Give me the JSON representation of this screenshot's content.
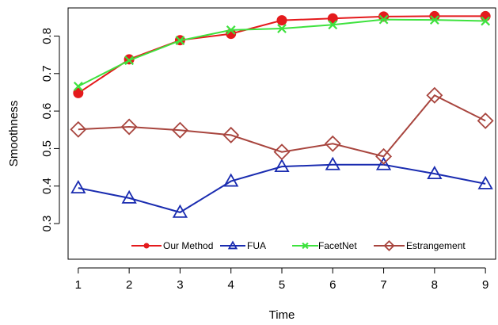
{
  "chart_data": {
    "type": "line",
    "title": "",
    "xlabel": "Time",
    "ylabel": "Smoothness",
    "x": [
      1,
      2,
      3,
      4,
      5,
      6,
      7,
      8,
      9
    ],
    "xlim": [
      0.8,
      9.2
    ],
    "ylim": [
      0.205,
      0.875
    ],
    "y_ticks": [
      0.3,
      0.4,
      0.5,
      0.6,
      0.7,
      0.8
    ],
    "y_tick_labels": [
      "0.3",
      "0.4",
      "0.5",
      "0.6",
      "0.7",
      "0.8"
    ],
    "x_ticks": [
      1,
      2,
      3,
      4,
      5,
      6,
      7,
      8,
      9
    ],
    "x_tick_labels": [
      "1",
      "2",
      "3",
      "4",
      "5",
      "6",
      "7",
      "8",
      "9"
    ],
    "grid": false,
    "legend_position": "bottom",
    "series": [
      {
        "name": "Our Method",
        "color": "#e41a1c",
        "marker": "filled-circle",
        "values": [
          0.648,
          0.738,
          0.789,
          0.806,
          0.842,
          0.847,
          0.852,
          0.853,
          0.853
        ]
      },
      {
        "name": "FUA",
        "color": "#1a2cb0",
        "marker": "open-triangle",
        "values": [
          0.395,
          0.368,
          0.33,
          0.413,
          0.452,
          0.457,
          0.457,
          0.433,
          0.406
        ]
      },
      {
        "name": "FacetNet",
        "color": "#3ee23e",
        "marker": "cross",
        "values": [
          0.666,
          0.735,
          0.788,
          0.816,
          0.82,
          0.83,
          0.844,
          0.843,
          0.84
        ]
      },
      {
        "name": "Estrangement",
        "color": "#a8453e",
        "marker": "open-diamond",
        "values": [
          0.551,
          0.558,
          0.549,
          0.536,
          0.491,
          0.513,
          0.479,
          0.642,
          0.574
        ]
      }
    ]
  }
}
